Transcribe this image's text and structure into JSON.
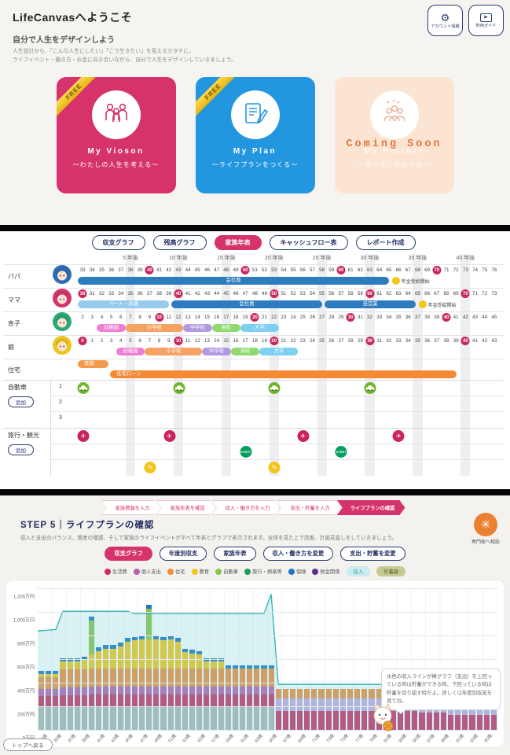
{
  "welcome": {
    "title": "LifeCanvasへようこそ",
    "account_button": "アカウント情報",
    "guide_button": "利用ガイド",
    "subtitle": "自分で人生をデザインしよう",
    "description_line1": "人生設計から、「こんな人生にしたい」「こう生きたい」を見えるカタチに。",
    "description_line2": "ライフイベント・働き方・お金に向き合いながら、自分で人生をデザインしていきましょう。",
    "cards": [
      {
        "badge": "FREE",
        "title": "My Vioson",
        "subtitle": "〜わたしの人生を考える〜",
        "color": "#d6336c",
        "overlay": ""
      },
      {
        "badge": "FREE",
        "title": "My Plan",
        "subtitle": "〜ライフプランをつくる〜",
        "color": "#2396e0",
        "overlay": ""
      },
      {
        "badge": "",
        "title": "My Partner",
        "subtitle": "〜専門家に相談する〜",
        "color": "#fbe5d2",
        "overlay": "Coming Soon"
      }
    ]
  },
  "timeline": {
    "tabs": [
      {
        "label": "収支グラフ",
        "active": false
      },
      {
        "label": "残高グラフ",
        "active": false
      },
      {
        "label": "家族年表",
        "active": true
      },
      {
        "label": "キャッシュフロー表",
        "active": false
      },
      {
        "label": "レポート作成",
        "active": false
      }
    ],
    "total_years": 44,
    "year_marks": [
      {
        "year": 5,
        "label": "5 年後"
      },
      {
        "year": 10,
        "label": "10 年後"
      },
      {
        "year": 15,
        "label": "15 年後"
      },
      {
        "year": 20,
        "label": "20 年後"
      },
      {
        "year": 25,
        "label": "25 年後"
      },
      {
        "year": 30,
        "label": "30 年後"
      },
      {
        "year": 35,
        "label": "35 年後"
      },
      {
        "year": 40,
        "label": "40 年後"
      }
    ],
    "members": [
      {
        "name": "パパ",
        "color": "#2e6db4",
        "start_age": 33,
        "bars": [
          {
            "label": "会社員",
            "start": 0,
            "end": 32.5,
            "color": "#2e7cc0"
          }
        ],
        "pension": {
          "year": 32.8,
          "label": "年金受給開始"
        }
      },
      {
        "name": "ママ",
        "color": "#d6336c",
        "start_age": 30,
        "bars": [
          {
            "label": "パート・派遣",
            "start": 0,
            "end": 9.5,
            "color": "#96cbec"
          },
          {
            "label": "会社員",
            "start": 9.8,
            "end": 25.5,
            "color": "#2e7cc0"
          },
          {
            "label": "自営業",
            "start": 25.8,
            "end": 35.3,
            "color": "#2e7cc0"
          }
        ],
        "pension": {
          "year": 35.6,
          "label": "年金受給開始"
        }
      },
      {
        "name": "息子",
        "color": "#2aa876",
        "start_age": 2,
        "bars": [
          {
            "label": "幼稚園",
            "start": 2,
            "end": 5,
            "color": "#ee7fd4"
          },
          {
            "label": "小学校",
            "start": 5,
            "end": 11,
            "color": "#f5a263"
          },
          {
            "label": "中学校",
            "start": 11,
            "end": 14,
            "color": "#b39ae0"
          },
          {
            "label": "高校",
            "start": 14,
            "end": 17,
            "color": "#8fd96e"
          },
          {
            "label": "大学",
            "start": 17,
            "end": 21,
            "color": "#7fd0f0"
          }
        ]
      },
      {
        "name": "娘",
        "color": "#edc51f",
        "start_age": 0,
        "bars": [
          {
            "label": "幼稚園",
            "start": 4,
            "end": 7,
            "color": "#ee7fd4"
          },
          {
            "label": "小学校",
            "start": 7,
            "end": 13,
            "color": "#f5a263"
          },
          {
            "label": "中学校",
            "start": 13,
            "end": 16,
            "color": "#b39ae0"
          },
          {
            "label": "高校",
            "start": 16,
            "end": 19,
            "color": "#8fd96e"
          },
          {
            "label": "大学",
            "start": 19,
            "end": 23,
            "color": "#7fd0f0"
          }
        ]
      }
    ],
    "housing": {
      "label": "住宅",
      "bars": [
        {
          "label": "賃貸",
          "start": 0,
          "end": 3.2,
          "color": "#f59a4d"
        },
        {
          "label": "住宅ローン",
          "start": 3.4,
          "end": 39.6,
          "color": "#f58a33"
        }
      ]
    },
    "car": {
      "label": "自動車",
      "add_label": "追加",
      "rows": [
        {
          "num": "1",
          "icons": [
            0,
            10,
            20,
            30
          ]
        },
        {
          "num": "2",
          "icons": []
        },
        {
          "num": "3",
          "icons": []
        }
      ]
    },
    "travel": {
      "label": "旅行・観光",
      "add_label": "追加",
      "rows": [
        {
          "type": "travel",
          "icons": [
            0,
            9,
            23,
            33
          ]
        },
        {
          "type": "event",
          "icon_label": "EVENT",
          "icons": [
            17,
            27
          ]
        },
        {
          "type": "memo",
          "icons": [
            7,
            20
          ]
        }
      ]
    }
  },
  "step": {
    "stepper": [
      {
        "label": "家族情報を入力",
        "active": false
      },
      {
        "label": "家族年表を確認",
        "active": false
      },
      {
        "label": "収入・働き方を入力",
        "active": false
      },
      {
        "label": "支出・貯蓄を入力",
        "active": false
      },
      {
        "label": "ライフプランの確認",
        "active": true
      }
    ],
    "title": "STEP 5｜ライフプランの確認",
    "description": "収入と支出のバランス、資産の増減、そして家族のライフイベントがすべて年表とグラフで表示されます。全体を見た上で改善、計画見直しをしていきましょう。",
    "consult_label": "専門家へ相談",
    "buttons": [
      {
        "label": "収支グラフ",
        "active": true
      },
      {
        "label": "年度別収支",
        "active": false
      },
      {
        "label": "家族年表",
        "active": false
      },
      {
        "label": "収入・働き方を変更",
        "active": false
      },
      {
        "label": "支出・貯蓄を変更",
        "active": false
      }
    ],
    "legend": [
      {
        "label": "生活費",
        "color": "#cc2f63"
      },
      {
        "label": "個人支出",
        "color": "#b761b1"
      },
      {
        "label": "住宅",
        "color": "#f08c3c"
      },
      {
        "label": "教育",
        "color": "#f5c518"
      },
      {
        "label": "自動車",
        "color": "#8bc34a"
      },
      {
        "label": "旅行・娯楽等",
        "color": "#18a05a"
      },
      {
        "label": "保険",
        "color": "#1f77c4"
      },
      {
        "label": "税金関係",
        "color": "#5b2d8e"
      }
    ],
    "legend_pills": [
      {
        "label": "収入",
        "bg": "#c9ecf1",
        "fg": "#3a8a9e"
      },
      {
        "label": "貯蓄額",
        "bg": "#c6ca90",
        "fg": "#5d6030"
      }
    ],
    "tooltip": "水色の収入ラインが棒グラフ（支出）を上回っている時は貯蓄ができる時、下回っている時は貯蓄を切り崩す時だよ。詳しくは年度別収支を見てね。",
    "back_to_top": "トップへ戻る"
  },
  "chart_data": {
    "type": "bar",
    "subtype": "stacked-bars-with-income-line",
    "ages_start": 33,
    "ages_end": 96,
    "x_tick_step": 2,
    "x_tick_suffix": "歳",
    "ylim": [
      0,
      1200
    ],
    "y_ticks": [
      "1,200万円",
      "1,000万円",
      "800万円",
      "600万円",
      "400万円",
      "200万円",
      "0万円"
    ],
    "series": [
      {
        "name": "税金関係",
        "color": "#b0b5b0",
        "values": [
          195,
          195,
          195,
          195,
          195,
          195,
          195,
          195,
          195,
          195,
          195,
          195,
          195,
          195,
          195,
          195,
          195,
          195,
          195,
          195,
          195,
          195,
          195,
          195,
          195,
          195,
          195,
          195,
          195,
          195,
          195,
          195,
          195,
          0,
          0,
          0,
          0,
          0,
          0,
          0,
          0,
          0,
          0,
          0,
          0,
          0,
          0,
          0,
          0,
          0,
          0,
          0,
          0,
          0,
          0,
          0,
          0,
          0,
          0,
          0,
          0,
          0,
          0,
          0
        ]
      },
      {
        "name": "生活費",
        "color": "#cc2f63",
        "values": [
          95,
          95,
          95,
          100,
          100,
          100,
          100,
          105,
          105,
          105,
          105,
          105,
          105,
          105,
          105,
          105,
          105,
          105,
          105,
          105,
          105,
          105,
          105,
          105,
          105,
          105,
          105,
          105,
          105,
          105,
          105,
          105,
          105,
          160,
          160,
          160,
          160,
          160,
          160,
          160,
          160,
          160,
          160,
          160,
          160,
          160,
          160,
          160,
          160,
          160,
          160,
          160,
          160,
          150,
          150,
          150,
          150,
          130,
          130,
          130,
          130,
          130,
          130,
          130
        ]
      },
      {
        "name": "個人支出",
        "color": "#b761b1",
        "values": [
          60,
          60,
          60,
          62,
          62,
          62,
          62,
          65,
          65,
          65,
          65,
          65,
          65,
          65,
          65,
          65,
          65,
          65,
          65,
          65,
          65,
          65,
          65,
          65,
          65,
          65,
          65,
          65,
          65,
          65,
          65,
          65,
          65,
          0,
          0,
          0,
          0,
          0,
          0,
          0,
          0,
          0,
          0,
          0,
          0,
          0,
          0,
          0,
          0,
          0,
          0,
          0,
          0,
          0,
          0,
          0,
          0,
          0,
          0,
          0,
          0,
          0,
          0,
          0
        ]
      },
      {
        "name": "個人支出",
        "color": "#c9aae2",
        "values": [
          0,
          0,
          0,
          0,
          0,
          0,
          0,
          0,
          0,
          0,
          0,
          0,
          0,
          0,
          0,
          0,
          0,
          0,
          0,
          0,
          0,
          0,
          0,
          0,
          0,
          0,
          0,
          0,
          0,
          0,
          0,
          0,
          0,
          105,
          105,
          105,
          105,
          105,
          105,
          105,
          105,
          105,
          105,
          105,
          105,
          105,
          105,
          105,
          105,
          105,
          105,
          105,
          105,
          95,
          95,
          95,
          95,
          85,
          85,
          85,
          85,
          85,
          85,
          85
        ]
      },
      {
        "name": "住宅",
        "color": "#f08c3c",
        "values": [
          100,
          100,
          100,
          155,
          155,
          155,
          155,
          155,
          155,
          155,
          155,
          155,
          155,
          155,
          155,
          155,
          155,
          155,
          155,
          155,
          155,
          155,
          155,
          155,
          155,
          155,
          155,
          155,
          155,
          155,
          155,
          155,
          155,
          85,
          85,
          85,
          85,
          85,
          85,
          85,
          85,
          85,
          85,
          85,
          85,
          85,
          85,
          85,
          85,
          85,
          85,
          85,
          85,
          80,
          80,
          80,
          80,
          70,
          70,
          70,
          70,
          70,
          70,
          70
        ]
      },
      {
        "name": "教育",
        "color": "#f5c518",
        "values": [
          25,
          25,
          25,
          65,
          65,
          65,
          80,
          120,
          150,
          170,
          170,
          190,
          230,
          240,
          250,
          250,
          250,
          240,
          250,
          230,
          140,
          130,
          120,
          60,
          60,
          60,
          0,
          0,
          0,
          0,
          0,
          0,
          0,
          0,
          0,
          0,
          0,
          0,
          0,
          0,
          0,
          0,
          0,
          0,
          0,
          0,
          0,
          0,
          0,
          0,
          0,
          0,
          0,
          0,
          0,
          0,
          0,
          0,
          0,
          0,
          0,
          0,
          0,
          0
        ]
      },
      {
        "name": "自動車",
        "color": "#8bc34a",
        "values": [
          0,
          0,
          0,
          0,
          0,
          0,
          0,
          290,
          0,
          0,
          0,
          0,
          0,
          0,
          0,
          260,
          0,
          0,
          0,
          0,
          0,
          0,
          0,
          0,
          0,
          0,
          0,
          0,
          0,
          0,
          0,
          0,
          0,
          0,
          0,
          0,
          0,
          0,
          0,
          0,
          0,
          0,
          0,
          0,
          0,
          0,
          0,
          0,
          0,
          0,
          0,
          0,
          0,
          0,
          0,
          0,
          0,
          0,
          0,
          0,
          0,
          0,
          0,
          0
        ]
      },
      {
        "name": "保険",
        "color": "#1f77c4",
        "values": [
          25,
          25,
          25,
          30,
          30,
          30,
          30,
          30,
          30,
          30,
          30,
          30,
          30,
          30,
          30,
          30,
          30,
          30,
          30,
          30,
          30,
          30,
          30,
          30,
          30,
          30,
          30,
          30,
          30,
          30,
          30,
          30,
          30,
          0,
          0,
          0,
          0,
          0,
          0,
          0,
          0,
          0,
          0,
          0,
          0,
          0,
          0,
          0,
          0,
          0,
          0,
          0,
          0,
          0,
          0,
          0,
          0,
          0,
          0,
          0,
          0,
          0,
          0,
          0
        ]
      }
    ],
    "line_series": {
      "name": "収入",
      "stroke": "#38b6b6",
      "fill": "rgba(120,210,214,0.28)",
      "values": [
        840,
        845,
        850,
        1005,
        1005,
        1005,
        1005,
        1005,
        1005,
        1005,
        1005,
        1005,
        1005,
        985,
        985,
        985,
        985,
        985,
        985,
        985,
        985,
        985,
        985,
        985,
        985,
        985,
        985,
        985,
        985,
        985,
        985,
        985,
        1150,
        385,
        385,
        385,
        385,
        385,
        385,
        385,
        385,
        385,
        385,
        385,
        385,
        385,
        385,
        385,
        385,
        385,
        385,
        385,
        335,
        335,
        335,
        335,
        335,
        335,
        335,
        335,
        335,
        335,
        335,
        335
      ]
    }
  }
}
